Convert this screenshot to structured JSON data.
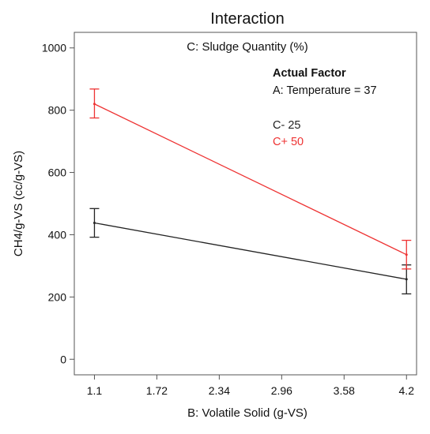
{
  "chart_data": {
    "type": "line",
    "title": "Interaction",
    "subtitle": "C: Sludge Quantity (%)",
    "xlabel": "B: Volatile Solid (g-VS)",
    "ylabel": "CH4/g-VS (cc/g-VS)",
    "xlim": [
      0.9,
      4.3
    ],
    "ylim": [
      -50,
      1050
    ],
    "x_ticks": [
      1.1,
      1.72,
      2.34,
      2.96,
      3.58,
      4.2
    ],
    "x_tick_labels": [
      "1.1",
      "1.72",
      "2.34",
      "2.96",
      "3.58",
      "4.2"
    ],
    "y_ticks": [
      0,
      200,
      400,
      600,
      800,
      1000
    ],
    "y_tick_labels": [
      "0",
      "200",
      "400",
      "600",
      "800",
      "1000"
    ],
    "grid": false,
    "legend_placement": "top-right",
    "annotation": {
      "heading": "Actual Factor",
      "factor": "A: Temperature = 37"
    },
    "series": [
      {
        "name": "C- 25",
        "color": "#222222",
        "x": [
          1.1,
          4.2
        ],
        "y": [
          438,
          257
        ],
        "err_low": [
          392,
          210
        ],
        "err_high": [
          484,
          303
        ]
      },
      {
        "name": "C+ 50",
        "color": "#ee3333",
        "x": [
          1.1,
          4.2
        ],
        "y": [
          820,
          336
        ],
        "err_low": [
          775,
          290
        ],
        "err_high": [
          868,
          382
        ]
      }
    ]
  }
}
